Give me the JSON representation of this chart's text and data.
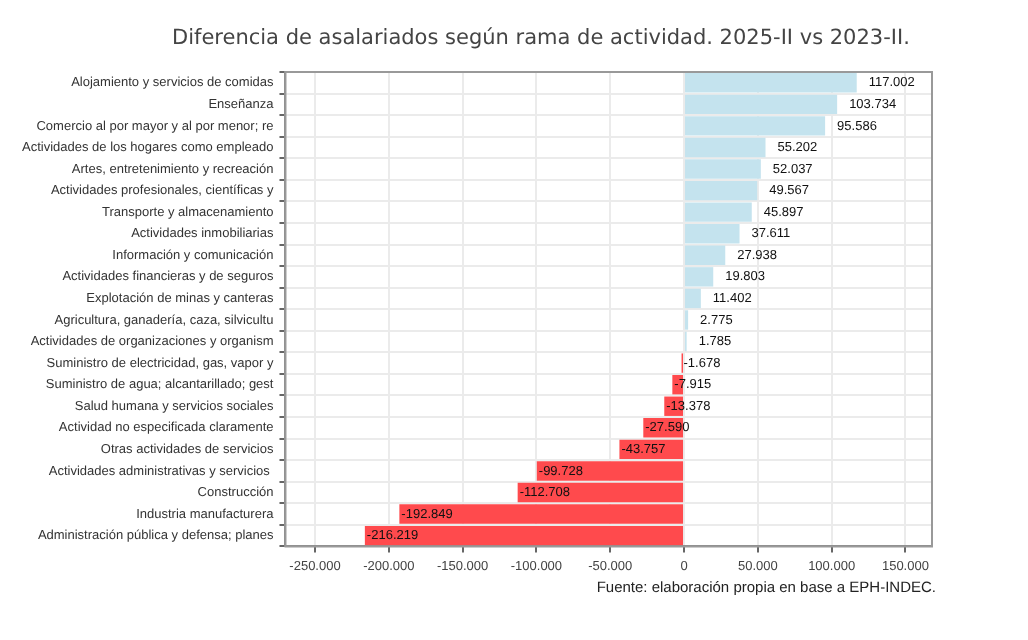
{
  "chart_data": {
    "type": "bar",
    "orientation": "horizontal",
    "title": "Diferencia de asalariados según rama de actividad. 2025-II vs 2023-II.",
    "categories": [
      "Alojamiento y servicios de comidas",
      "Enseñanza",
      "Comercio al por mayor y al por menor; re",
      "Actividades de los hogares como empleado",
      "Artes, entretenimiento y recreación",
      "Actividades profesionales, científicas y",
      "Transporte y almacenamiento",
      "Actividades inmobiliarias",
      "Información y comunicación",
      "Actividades financieras y de seguros",
      "Explotación de minas y canteras",
      "Agricultura, ganadería, caza, silvicultu",
      "Actividades de organizaciones y organism",
      "Suministro de electricidad, gas, vapor y",
      "Suministro de agua; alcantarillado; gest",
      "Salud humana y servicios sociales",
      "Actividad no especificada claramente",
      "Otras actividades de servicios",
      "Actividades administrativas y servicios ",
      "Construcción",
      "Industria manufacturera",
      "Administración pública y defensa; planes"
    ],
    "values": [
      117002,
      103734,
      95586,
      55202,
      52037,
      49567,
      45897,
      37611,
      27938,
      19803,
      11402,
      2775,
      1785,
      -1678,
      -7915,
      -13378,
      -27590,
      -43757,
      -99728,
      -112708,
      -192849,
      -216219
    ],
    "value_labels": [
      "117.002",
      "103.734",
      "95.586",
      "55.202",
      "52.037",
      "49.567",
      "45.897",
      "37.611",
      "27.938",
      "19.803",
      "11.402",
      "2.775",
      "1.785",
      "-1.678",
      "-7.915",
      "-13.378",
      "-27.590",
      "-43.757",
      "-99.728",
      "-112.708",
      "-192.849",
      "-216.219"
    ],
    "colors": [
      "#c4e3ee",
      "#c4e3ee",
      "#c4e3ee",
      "#c4e3ee",
      "#c4e3ee",
      "#c4e3ee",
      "#c4e3ee",
      "#c4e3ee",
      "#c4e3ee",
      "#c4e3ee",
      "#c4e3ee",
      "#c4e3ee",
      "#c4e3ee",
      "#ff4a4d",
      "#ff4a4d",
      "#ff4a4d",
      "#ff4a4d",
      "#ff4a4d",
      "#ff4a4d",
      "#ff4a4d",
      "#ff4a4d",
      "#ff4a4d"
    ],
    "xlim": [
      -270000,
      168000
    ],
    "xticks": [
      {
        "value": -250000,
        "label": "-250.000"
      },
      {
        "value": -200000,
        "label": "-200.000"
      },
      {
        "value": -150000,
        "label": "-150.000"
      },
      {
        "value": -100000,
        "label": "-100.000"
      },
      {
        "value": -50000,
        "label": "-50.000"
      },
      0,
      {
        "value": 50000,
        "label": "50.000"
      },
      {
        "value": 100000,
        "label": "100.000"
      },
      {
        "value": 150000,
        "label": "150.000"
      }
    ],
    "grid": true,
    "legend": false,
    "annotations": [
      "Fuente: elaboración propia en base a EPH-INDEC."
    ]
  }
}
